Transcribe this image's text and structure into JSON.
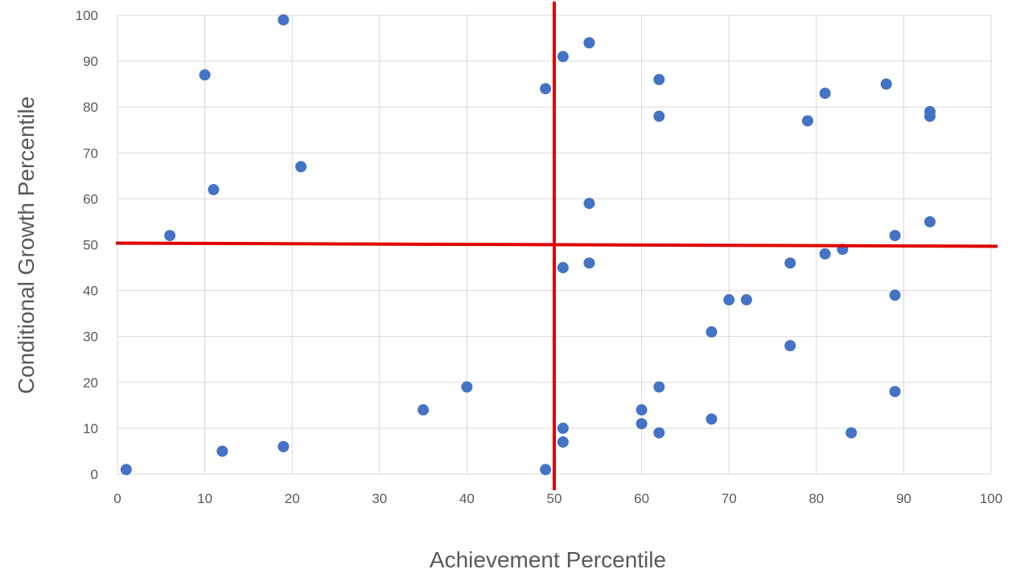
{
  "chart_data": {
    "type": "scatter",
    "title": "",
    "xlabel": "Achievement Percentile",
    "ylabel": "Conditional Growth Percentile",
    "xlim": [
      0,
      100
    ],
    "ylim": [
      0,
      100
    ],
    "xticks": [
      "0",
      "10",
      "20",
      "30",
      "40",
      "50",
      "60",
      "70",
      "80",
      "90",
      "100"
    ],
    "yticks": [
      "0",
      "10",
      "20",
      "30",
      "40",
      "50",
      "60",
      "70",
      "80",
      "90",
      "100"
    ],
    "grid": true,
    "legend": "none",
    "colors": {
      "points": "#4472C4",
      "reference_lines": "#E00000",
      "grid": "#D9D9D9"
    },
    "reference_lines": {
      "x": 50,
      "y": 50
    },
    "series": [
      {
        "points": [
          [
            1,
            1
          ],
          [
            6,
            52
          ],
          [
            10,
            87
          ],
          [
            11,
            62
          ],
          [
            12,
            5
          ],
          [
            19,
            99
          ],
          [
            19,
            6
          ],
          [
            21,
            67
          ],
          [
            35,
            14
          ],
          [
            40,
            19
          ],
          [
            49,
            84
          ],
          [
            49,
            1
          ],
          [
            51,
            91
          ],
          [
            51,
            45
          ],
          [
            51,
            10
          ],
          [
            51,
            7
          ],
          [
            54,
            94
          ],
          [
            54,
            59
          ],
          [
            54,
            46
          ],
          [
            60,
            14
          ],
          [
            60,
            11
          ],
          [
            62,
            86
          ],
          [
            62,
            78
          ],
          [
            62,
            19
          ],
          [
            62,
            9
          ],
          [
            68,
            31
          ],
          [
            68,
            12
          ],
          [
            70,
            38
          ],
          [
            72,
            38
          ],
          [
            77,
            46
          ],
          [
            77,
            28
          ],
          [
            79,
            77
          ],
          [
            81,
            83
          ],
          [
            81,
            48
          ],
          [
            83,
            49
          ],
          [
            84,
            9
          ],
          [
            88,
            85
          ],
          [
            89,
            52
          ],
          [
            89,
            39
          ],
          [
            89,
            18
          ],
          [
            93,
            79
          ],
          [
            93,
            78
          ],
          [
            93,
            55
          ]
        ]
      }
    ]
  }
}
